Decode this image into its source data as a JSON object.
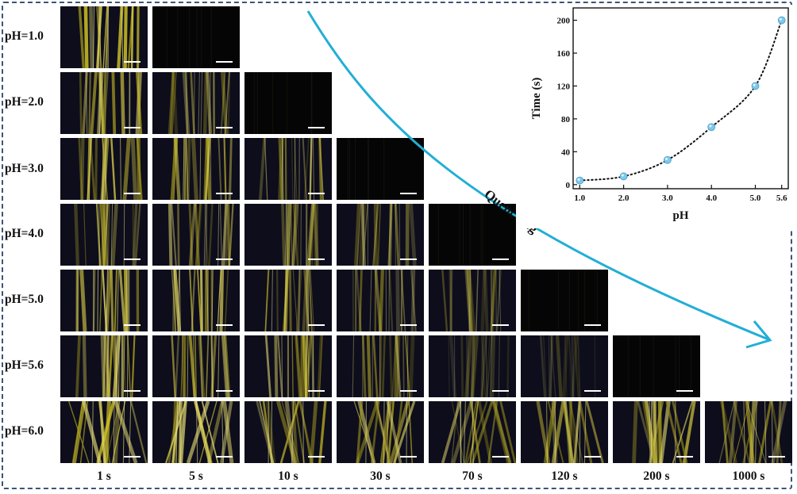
{
  "row_labels": [
    "pH=1.0",
    "pH=2.0",
    "pH=3.0",
    "pH=4.0",
    "pH=5.0",
    "pH=5.6",
    "pH=6.0"
  ],
  "col_labels": [
    "1 s",
    "5 s",
    "10 s",
    "30 s",
    "70 s",
    "120 s",
    "200 s",
    "1000 s"
  ],
  "brightness": [
    [
      1.0,
      0.0
    ],
    [
      0.75,
      0.55,
      0.0
    ],
    [
      0.85,
      0.75,
      0.6,
      0.0
    ],
    [
      0.7,
      0.65,
      0.55,
      0.45,
      0.0
    ],
    [
      0.9,
      0.85,
      0.7,
      0.55,
      0.45,
      0.0
    ],
    [
      0.85,
      0.8,
      0.7,
      0.55,
      0.35,
      0.25,
      0.0
    ],
    [
      0.9,
      0.9,
      0.85,
      0.85,
      0.85,
      0.8,
      0.8,
      0.8
    ]
  ],
  "arrow_label": "Quenching",
  "colors": {
    "frame": "#3d5478",
    "arrow": "#22aed6",
    "point": "#7ec8ea",
    "glow": "#e8e08a"
  },
  "chart_data": {
    "type": "scatter",
    "title": "",
    "xlabel": "pH",
    "ylabel": "Time (s)",
    "x": [
      1.0,
      2.0,
      3.0,
      4.0,
      5.0,
      5.6
    ],
    "y": [
      5,
      10,
      30,
      70,
      120,
      200
    ],
    "x_ticks": [
      "1.0",
      "2.0",
      "3.0",
      "4.0",
      "5.0",
      "5.6"
    ],
    "y_ticks": [
      "0",
      "40",
      "80",
      "120",
      "160",
      "200"
    ],
    "ylim": [
      -5,
      215
    ],
    "fit_line": "dotted",
    "grid": false
  }
}
